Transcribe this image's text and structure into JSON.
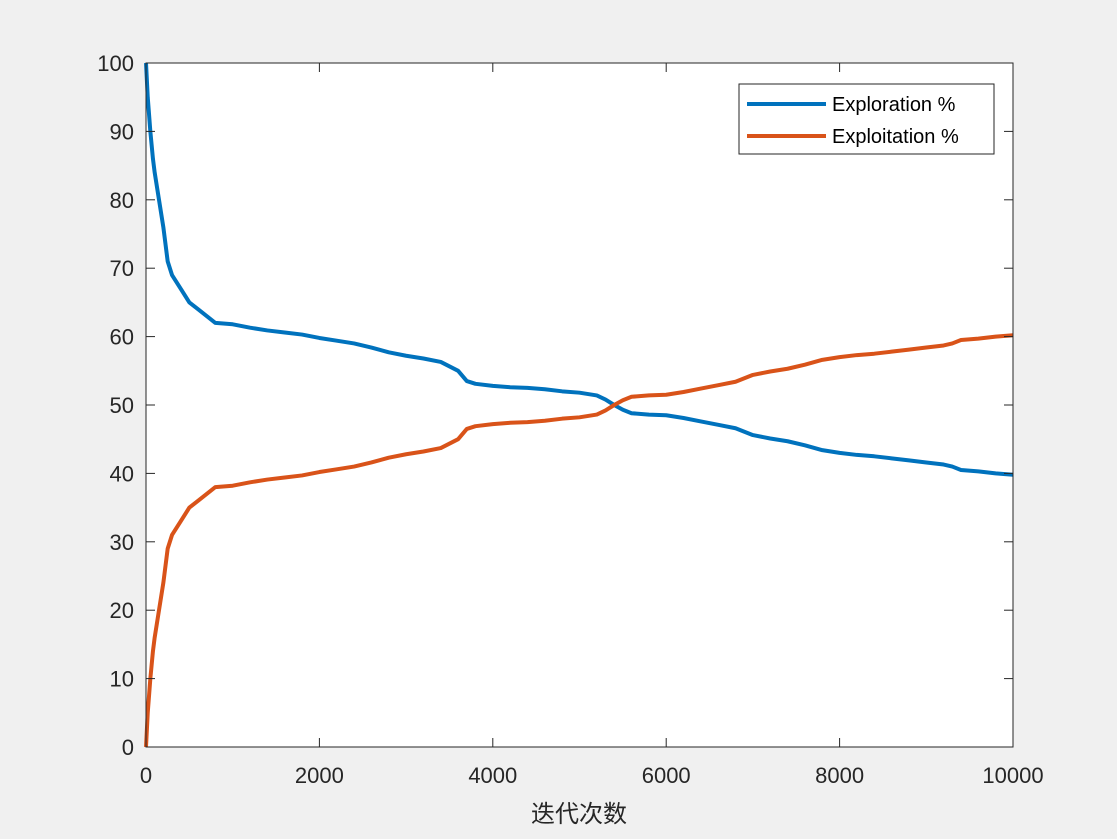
{
  "chart_data": {
    "type": "line",
    "title": "",
    "xlabel": "迭代次数",
    "ylabel": "",
    "xlim": [
      0,
      10000
    ],
    "ylim": [
      0,
      100
    ],
    "x_ticks": [
      "0",
      "2000",
      "4000",
      "6000",
      "8000",
      "10000"
    ],
    "y_ticks": [
      "0",
      "10",
      "20",
      "30",
      "40",
      "50",
      "60",
      "70",
      "80",
      "90",
      "100"
    ],
    "grid": false,
    "legend_position": "top-right",
    "x": [
      0,
      20,
      50,
      80,
      100,
      150,
      200,
      250,
      300,
      400,
      500,
      600,
      700,
      800,
      1000,
      1200,
      1400,
      1600,
      1800,
      2000,
      2200,
      2400,
      2600,
      2800,
      3000,
      3200,
      3400,
      3600,
      3700,
      3800,
      4000,
      4200,
      4400,
      4600,
      4800,
      5000,
      5200,
      5300,
      5400,
      5500,
      5600,
      5800,
      6000,
      6200,
      6400,
      6600,
      6800,
      7000,
      7200,
      7400,
      7600,
      7800,
      8000,
      8200,
      8400,
      8600,
      8800,
      9000,
      9200,
      9300,
      9400,
      9600,
      9800,
      10000
    ],
    "series": [
      {
        "name": "Exploration %",
        "color": "#0072bd",
        "values": [
          100,
          95,
          90,
          86,
          84,
          80,
          76,
          71,
          69,
          67,
          65,
          64,
          63,
          62,
          61.8,
          61.3,
          60.9,
          60.6,
          60.3,
          59.8,
          59.4,
          59.0,
          58.4,
          57.7,
          57.2,
          56.8,
          56.3,
          55.0,
          53.5,
          53.1,
          52.8,
          52.6,
          52.5,
          52.3,
          52.0,
          51.8,
          51.4,
          50.8,
          50.0,
          49.3,
          48.8,
          48.6,
          48.5,
          48.1,
          47.6,
          47.1,
          46.6,
          45.6,
          45.1,
          44.7,
          44.1,
          43.4,
          43.0,
          42.7,
          42.5,
          42.2,
          41.9,
          41.6,
          41.3,
          41.0,
          40.5,
          40.3,
          40.0,
          39.8
        ]
      },
      {
        "name": "Exploitation %",
        "color": "#d95319",
        "values": [
          0,
          5,
          10,
          14,
          16,
          20,
          24,
          29,
          31,
          33,
          35,
          36,
          37,
          38,
          38.2,
          38.7,
          39.1,
          39.4,
          39.7,
          40.2,
          40.6,
          41.0,
          41.6,
          42.3,
          42.8,
          43.2,
          43.7,
          45.0,
          46.5,
          46.9,
          47.2,
          47.4,
          47.5,
          47.7,
          48.0,
          48.2,
          48.6,
          49.2,
          50.0,
          50.7,
          51.2,
          51.4,
          51.5,
          51.9,
          52.4,
          52.9,
          53.4,
          54.4,
          54.9,
          55.3,
          55.9,
          56.6,
          57.0,
          57.3,
          57.5,
          57.8,
          58.1,
          58.4,
          58.7,
          59.0,
          59.5,
          59.7,
          60.0,
          60.2
        ]
      }
    ]
  }
}
